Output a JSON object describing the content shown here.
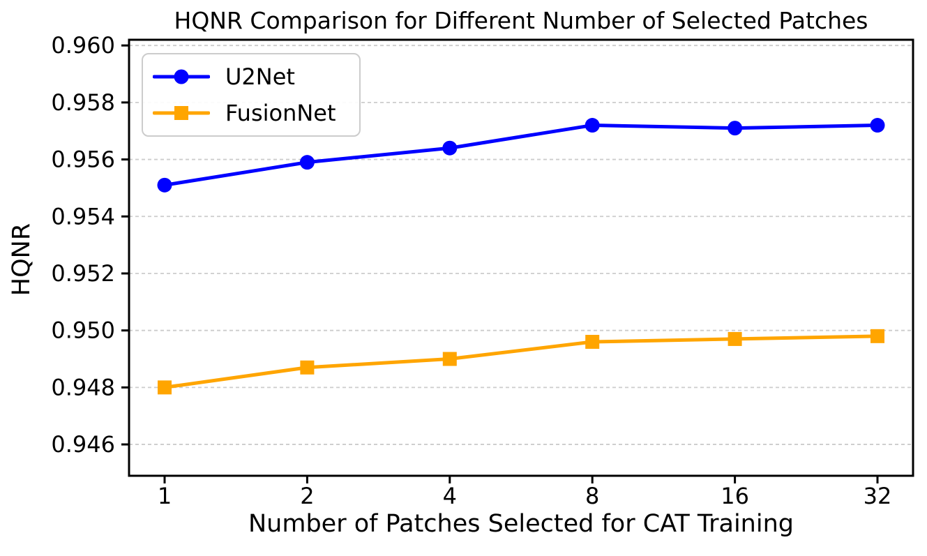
{
  "chart_data": {
    "type": "line",
    "title": "HQNR Comparison for Different Number of Selected Patches",
    "xlabel": "Number of Patches Selected for CAT Training",
    "ylabel": "HQNR",
    "categories": [
      "1",
      "2",
      "4",
      "8",
      "16",
      "32"
    ],
    "series": [
      {
        "name": "U2Net",
        "color": "#0000FF",
        "marker": "circle",
        "values": [
          0.9551,
          0.9559,
          0.9564,
          0.9572,
          0.9571,
          0.9572
        ]
      },
      {
        "name": "FusionNet",
        "color": "#FFA500",
        "marker": "square",
        "values": [
          0.948,
          0.9487,
          0.949,
          0.9496,
          0.9497,
          0.9498
        ]
      }
    ],
    "ytick_labels": [
      "0.946",
      "0.948",
      "0.950",
      "0.952",
      "0.954",
      "0.956",
      "0.958",
      "0.960"
    ],
    "yticks": [
      0.946,
      0.948,
      0.95,
      0.952,
      0.954,
      0.956,
      0.958,
      0.96
    ],
    "ylim": [
      0.9449,
      0.9602
    ],
    "xscale": "log2-categorical",
    "grid": "horizontal-dashed",
    "legend_position": "upper-left"
  },
  "colors": {
    "grid": "#cccccc",
    "axis": "#000000",
    "text": "#000000",
    "background": "#ffffff"
  }
}
